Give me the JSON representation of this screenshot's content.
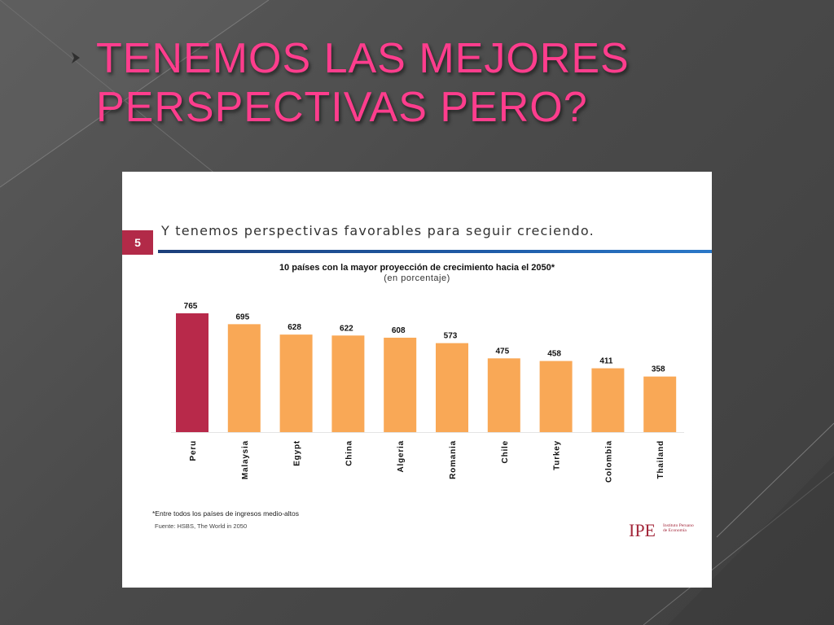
{
  "slide": {
    "title": "TENEMOS LAS MEJORES\nPERSPECTIVAS PERO?"
  },
  "panel": {
    "slide_number": "5",
    "subtitle": "Y tenemos perspectivas favorables para seguir creciendo.",
    "footnote": "*Entre todos los países de ingresos medio-altos",
    "source": "Fuente: HSBS, The World in 2050",
    "logo_mark": "IPE",
    "logo_text": "Instituto Peruano de Economía"
  },
  "colors": {
    "title": "#ff3d8d",
    "highlight_bar": "#b8294a",
    "bar": "#f9a856",
    "slide_number_bg": "#b22a48",
    "rule": "#1f5ca8"
  },
  "chart_data": {
    "type": "bar",
    "title": "10 países con la mayor proyección de crecimiento hacia el 2050*",
    "subtitle": "(en porcentaje)",
    "categories": [
      "Peru",
      "Malaysia",
      "Egypt",
      "China",
      "Algeria",
      "Romania",
      "Chile",
      "Turkey",
      "Colombia",
      "Thailand"
    ],
    "values": [
      765,
      695,
      628,
      622,
      608,
      573,
      475,
      458,
      411,
      358
    ],
    "highlight": "Peru",
    "ylim": [
      0,
      765
    ],
    "grid": false,
    "legend": "none"
  }
}
